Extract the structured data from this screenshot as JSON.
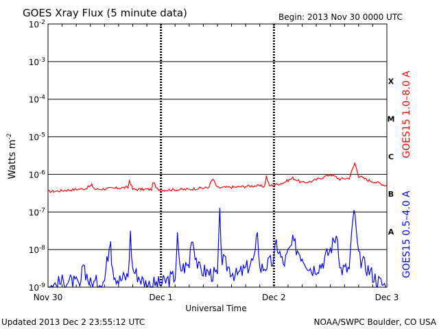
{
  "chart_data": {
    "type": "line",
    "title": "GOES Xray Flux (5 minute data)",
    "begin_label": "Begin:  2013 Nov 30 0000 UTC",
    "ylabel": "Watts m",
    "ylabel_superscript": "-2",
    "xlabel": "Universal Time",
    "y_scale": "log",
    "ylim": [
      1e-09,
      0.01
    ],
    "y_ticks": [
      {
        "mantissa": "10",
        "exp": "-2"
      },
      {
        "mantissa": "10",
        "exp": "-3"
      },
      {
        "mantissa": "10",
        "exp": "-4"
      },
      {
        "mantissa": "10",
        "exp": "-5"
      },
      {
        "mantissa": "10",
        "exp": "-6"
      },
      {
        "mantissa": "10",
        "exp": "-7"
      },
      {
        "mantissa": "10",
        "exp": "-8"
      },
      {
        "mantissa": "10",
        "exp": "-9"
      }
    ],
    "x_range_hours": [
      0,
      72
    ],
    "x_ticks": [
      {
        "label": "Nov 30",
        "hour": 0
      },
      {
        "label": "Dec 1",
        "hour": 24
      },
      {
        "label": "Dec 2",
        "hour": 48
      },
      {
        "label": "Dec 3",
        "hour": 72
      }
    ],
    "flare_classes": [
      {
        "label": "X",
        "flux": 0.0003
      },
      {
        "label": "M",
        "flux": 3e-05
      },
      {
        "label": "C",
        "flux": 3e-06
      },
      {
        "label": "B",
        "flux": 3e-07
      },
      {
        "label": "A",
        "flux": 3e-08
      }
    ],
    "series": [
      {
        "name": "GOES15 1.0–8.0 A",
        "color": "#ff0000",
        "x": [
          0,
          2,
          4,
          6,
          8,
          9.3,
          10,
          13,
          17,
          17.3,
          18,
          22,
          22.4,
          23,
          24,
          26,
          30,
          32,
          34,
          35,
          36,
          38,
          40,
          42,
          44,
          46,
          46.4,
          47,
          48,
          50,
          52,
          54,
          56,
          60,
          62,
          64,
          65.2,
          66,
          68,
          70,
          72
        ],
        "y": [
          3.5e-07,
          3.6e-07,
          3.8e-07,
          4e-07,
          4.2e-07,
          5.2e-07,
          4e-07,
          4.2e-07,
          4.5e-07,
          7e-07,
          4e-07,
          4e-07,
          6.5e-07,
          4.2e-07,
          3.8e-07,
          3.9e-07,
          4e-07,
          4.3e-07,
          4.4e-07,
          7.5e-07,
          4.4e-07,
          4.5e-07,
          4.6e-07,
          4.8e-07,
          5e-07,
          4.8e-07,
          9e-07,
          5e-07,
          5.2e-07,
          6e-07,
          8e-07,
          6e-07,
          6.5e-07,
          1e-06,
          7.5e-07,
          8e-07,
          2e-06,
          9e-07,
          7e-07,
          6e-07,
          5e-07
        ]
      },
      {
        "name": "GOES15 0.5–4.0 A",
        "color": "#0000ff",
        "x": [
          0,
          4,
          6,
          7,
          7.5,
          8,
          9,
          12,
          13.3,
          13.5,
          14,
          15,
          17,
          17.5,
          18,
          20,
          21,
          22,
          24,
          27,
          27.5,
          28,
          30,
          30.5,
          32,
          36,
          36.5,
          37,
          40,
          42,
          44,
          44.5,
          45,
          48,
          48.5,
          50,
          52,
          56,
          58,
          60,
          61.5,
          62,
          64,
          65,
          66,
          68,
          70,
          72
        ],
        "y": [
          1e-09,
          1.5e-09,
          1.2e-09,
          1e-09,
          5e-09,
          2.5e-09,
          1.2e-09,
          1.5e-09,
          2.5e-08,
          6e-09,
          2.5e-09,
          1.5e-09,
          2e-09,
          2.5e-08,
          3e-09,
          1.5e-09,
          1.2e-09,
          1.2e-09,
          1.2e-09,
          2e-09,
          2e-08,
          3e-09,
          4e-09,
          2.5e-08,
          3e-09,
          2e-09,
          8e-08,
          5e-09,
          2e-09,
          3e-09,
          6e-09,
          4e-08,
          3e-09,
          5e-09,
          1.5e-08,
          4e-09,
          1.5e-08,
          3e-09,
          4e-09,
          1e-08,
          3e-08,
          3e-09,
          3e-09,
          1.3e-07,
          6e-09,
          3e-09,
          1.5e-09,
          1e-09
        ]
      }
    ],
    "grid": true,
    "day_boundaries_hours": [
      24,
      48
    ]
  },
  "footer": {
    "updated": "Updated 2013 Dec  2 23:55:12 UTC",
    "credit": "NOAA/SWPC Boulder, CO USA"
  }
}
